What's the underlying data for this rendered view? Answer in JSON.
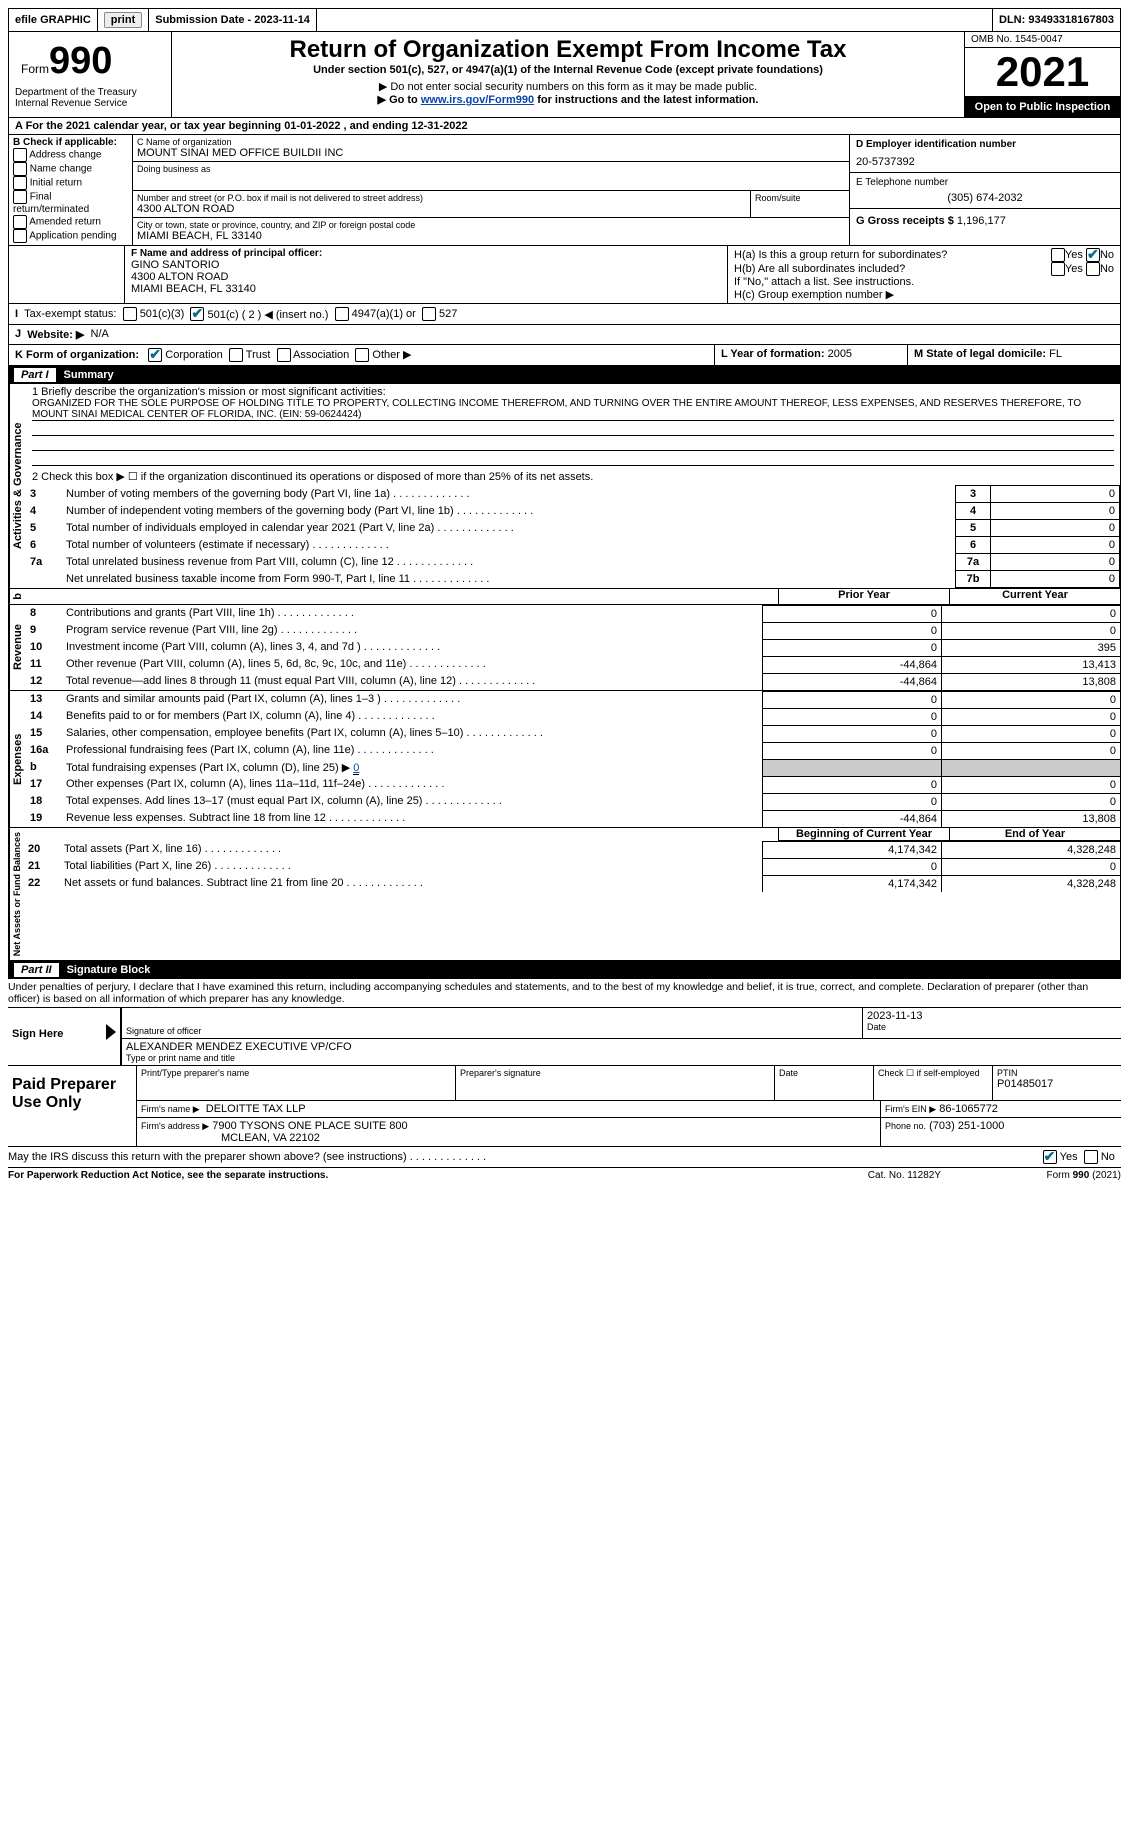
{
  "topbar": {
    "efile": "efile GRAPHIC",
    "print_btn": "print",
    "submission_label": "Submission Date - 2023-11-14",
    "dln_label": "DLN: 93493318167803"
  },
  "header": {
    "form_label_small": "Form",
    "form_label_big": "990",
    "title": "Return of Organization Exempt From Income Tax",
    "subtitle": "Under section 501(c), 527, or 4947(a)(1) of the Internal Revenue Code (except private foundations)",
    "note1": "▶ Do not enter social security numbers on this form as it may be made public.",
    "note2_pre": "▶ Go to ",
    "note2_link": "www.irs.gov/Form990",
    "note2_post": " for instructions and the latest information.",
    "dept": "Department of the Treasury\nInternal Revenue Service",
    "omb": "OMB No. 1545-0047",
    "year": "2021",
    "open": "Open to Public Inspection"
  },
  "section_a": {
    "line_a": "A For the 2021 calendar year, or tax year beginning 01-01-2022   , and ending 12-31-2022",
    "b_label": "B Check if applicable:",
    "b_opts": [
      "Address change",
      "Name change",
      "Initial return",
      "Final return/terminated",
      "Amended return",
      "Application pending"
    ],
    "c_label": "C Name of organization",
    "c_name": "MOUNT SINAI MED OFFICE BUILDII INC",
    "dba": "Doing business as",
    "addr_label": "Number and street (or P.O. box if mail is not delivered to street address)",
    "room": "Room/suite",
    "addr": "4300 ALTON ROAD",
    "city_label": "City or town, state or province, country, and ZIP or foreign postal code",
    "city": "MIAMI BEACH, FL  33140",
    "d_label": "D Employer identification number",
    "d_val": "20-5737392",
    "e_label": "E Telephone number",
    "e_val": "(305) 674-2032",
    "g_label": "G Gross receipts $",
    "g_val": "1,196,177",
    "f_label": "F  Name and address of principal officer:",
    "f_name": "GINO SANTORIO",
    "f_addr": "4300 ALTON ROAD",
    "f_city": "MIAMI BEACH, FL  33140",
    "h_a": "H(a)  Is this a group return for subordinates?",
    "h_b": "H(b)  Are all subordinates included?",
    "h_note": "If \"No,\" attach a list. See instructions.",
    "h_c": "H(c)  Group exemption number ▶",
    "yes": "Yes",
    "no": "No",
    "tax_status": "Tax-exempt status:",
    "ts_501c3": "501(c)(3)",
    "ts_501c": "501(c) ( 2 ) ◀ (insert no.)",
    "ts_4947": "4947(a)(1) or",
    "ts_527": "527",
    "website_label": "Website: ▶",
    "website": "N/A",
    "k_label": "K Form of organization:",
    "k_opts": [
      "Corporation",
      "Trust",
      "Association",
      "Other ▶"
    ],
    "l_label": "L Year of formation:",
    "l_val": "2005",
    "m_label": "M State of legal domicile:",
    "m_val": "FL"
  },
  "part1": {
    "header_part": "Part I",
    "header_title": "Summary",
    "line1_label": "1  Briefly describe the organization's mission or most significant activities:",
    "line1_text": "ORGANIZED FOR THE SOLE PURPOSE OF HOLDING TITLE TO PROPERTY, COLLECTING INCOME THEREFROM, AND TURNING OVER THE ENTIRE AMOUNT THEREOF, LESS EXPENSES, AND RESERVES THEREFORE, TO MOUNT SINAI MEDICAL CENTER OF FLORIDA, INC. (EIN: 59-0624424)",
    "line2": "2   Check this box ▶ ☐  if the organization discontinued its operations or disposed of more than 25% of its net assets.",
    "lines_ag": [
      {
        "n": "3",
        "t": "Number of voting members of the governing body (Part VI, line 1a)",
        "box": "3",
        "v": "0"
      },
      {
        "n": "4",
        "t": "Number of independent voting members of the governing body (Part VI, line 1b)",
        "box": "4",
        "v": "0"
      },
      {
        "n": "5",
        "t": "Total number of individuals employed in calendar year 2021 (Part V, line 2a)",
        "box": "5",
        "v": "0"
      },
      {
        "n": "6",
        "t": "Total number of volunteers (estimate if necessary)",
        "box": "6",
        "v": "0"
      },
      {
        "n": "7a",
        "t": "Total unrelated business revenue from Part VIII, column (C), line 12",
        "box": "7a",
        "v": "0"
      },
      {
        "n": "",
        "t": "Net unrelated business taxable income from Form 990-T, Part I, line 11",
        "box": "7b",
        "v": "0"
      }
    ],
    "col_prior": "Prior Year",
    "col_current": "Current Year",
    "revenue": [
      {
        "n": "8",
        "t": "Contributions and grants (Part VIII, line 1h)",
        "p": "0",
        "c": "0"
      },
      {
        "n": "9",
        "t": "Program service revenue (Part VIII, line 2g)",
        "p": "0",
        "c": "0"
      },
      {
        "n": "10",
        "t": "Investment income (Part VIII, column (A), lines 3, 4, and 7d )",
        "p": "0",
        "c": "395"
      },
      {
        "n": "11",
        "t": "Other revenue (Part VIII, column (A), lines 5, 6d, 8c, 9c, 10c, and 11e)",
        "p": "-44,864",
        "c": "13,413"
      },
      {
        "n": "12",
        "t": "Total revenue—add lines 8 through 11 (must equal Part VIII, column (A), line 12)",
        "p": "-44,864",
        "c": "13,808"
      }
    ],
    "expenses": [
      {
        "n": "13",
        "t": "Grants and similar amounts paid (Part IX, column (A), lines 1–3 )",
        "p": "0",
        "c": "0"
      },
      {
        "n": "14",
        "t": "Benefits paid to or for members (Part IX, column (A), line 4)",
        "p": "0",
        "c": "0"
      },
      {
        "n": "15",
        "t": "Salaries, other compensation, employee benefits (Part IX, column (A), lines 5–10)",
        "p": "0",
        "c": "0"
      },
      {
        "n": "16a",
        "t": "Professional fundraising fees (Part IX, column (A), line 11e)",
        "p": "0",
        "c": "0"
      },
      {
        "n": "b",
        "t": "Total fundraising expenses (Part IX, column (D), line 25) ▶",
        "p": "shaded",
        "c": "shaded",
        "extra": "0"
      },
      {
        "n": "17",
        "t": "Other expenses (Part IX, column (A), lines 11a–11d, 11f–24e)",
        "p": "0",
        "c": "0"
      },
      {
        "n": "18",
        "t": "Total expenses. Add lines 13–17 (must equal Part IX, column (A), line 25)",
        "p": "0",
        "c": "0"
      },
      {
        "n": "19",
        "t": "Revenue less expenses. Subtract line 18 from line 12",
        "p": "-44,864",
        "c": "13,808"
      }
    ],
    "col_begin": "Beginning of Current Year",
    "col_end": "End of Year",
    "netassets": [
      {
        "n": "20",
        "t": "Total assets (Part X, line 16)",
        "p": "4,174,342",
        "c": "4,328,248"
      },
      {
        "n": "21",
        "t": "Total liabilities (Part X, line 26)",
        "p": "0",
        "c": "0"
      },
      {
        "n": "22",
        "t": "Net assets or fund balances. Subtract line 21 from line 20",
        "p": "4,174,342",
        "c": "4,328,248"
      }
    ],
    "vlabel_ag": "Activities & Governance",
    "vlabel_rev": "Revenue",
    "vlabel_exp": "Expenses",
    "vlabel_na": "Net Assets or Fund Balances"
  },
  "part2": {
    "header_part": "Part II",
    "header_title": "Signature Block",
    "penalty": "Under penalties of perjury, I declare that I have examined this return, including accompanying schedules and statements, and to the best of my knowledge and belief, it is true, correct, and complete. Declaration of preparer (other than officer) is based on all information of which preparer has any knowledge.",
    "sign_here": "Sign Here",
    "sig_officer": "Signature of officer",
    "sig_date": "Date",
    "sig_date_val": "2023-11-13",
    "sig_name": "ALEXANDER MENDEZ  EXECUTIVE VP/CFO",
    "sig_name_label": "Type or print name and title",
    "paid_prep": "Paid Preparer Use Only",
    "pp_name_label": "Print/Type preparer's name",
    "pp_sig_label": "Preparer's signature",
    "pp_date_label": "Date",
    "pp_check": "Check ☐ if self-employed",
    "pp_ptin_label": "PTIN",
    "pp_ptin": "P01485017",
    "firm_name_label": "Firm's name    ▶",
    "firm_name": "DELOITTE TAX LLP",
    "firm_ein_label": "Firm's EIN ▶",
    "firm_ein": "86-1065772",
    "firm_addr_label": "Firm's address ▶",
    "firm_addr1": "7900 TYSONS ONE PLACE SUITE 800",
    "firm_addr2": "MCLEAN, VA  22102",
    "firm_phone_label": "Phone no.",
    "firm_phone": "(703) 251-1000",
    "may_irs": "May the IRS discuss this return with the preparer shown above? (see instructions)",
    "footer_left": "For Paperwork Reduction Act Notice, see the separate instructions.",
    "footer_mid": "Cat. No. 11282Y",
    "footer_right": "Form 990 (2021)"
  }
}
